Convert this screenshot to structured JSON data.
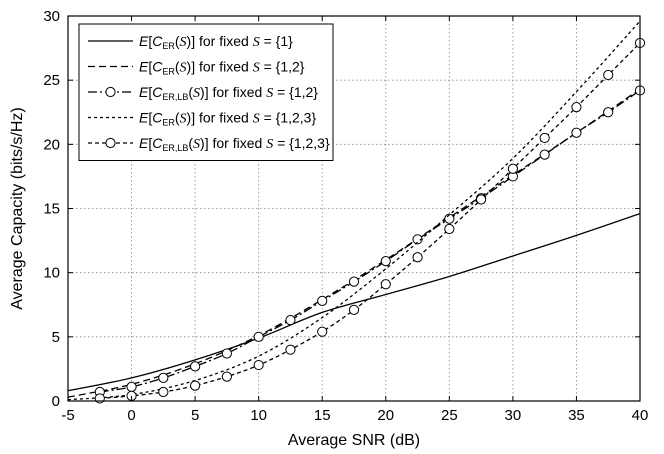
{
  "chart_data": {
    "type": "line",
    "xlabel": "Average SNR (dB)",
    "ylabel": "Average Capacity (bits/s/Hz)",
    "xlim": [
      -5,
      40
    ],
    "ylim": [
      0,
      30
    ],
    "xticks": [
      "-5",
      "0",
      "5",
      "10",
      "15",
      "20",
      "25",
      "30",
      "35",
      "40"
    ],
    "yticks": [
      "0",
      "5",
      "10",
      "15",
      "20",
      "25",
      "30"
    ],
    "grid": true,
    "legend_position": "top-left",
    "series": [
      {
        "legend": {
          "pre": "E[C",
          "sub": "ER",
          "mid": "(S)] for fixed ",
          "set": "S",
          "post": " = {1}"
        },
        "style": "solid",
        "markers": false,
        "x": [
          -5,
          0,
          5,
          10,
          15,
          20,
          25,
          30,
          35,
          40
        ],
        "y": [
          0.8,
          1.8,
          3.2,
          4.9,
          6.9,
          8.3,
          9.7,
          11.3,
          12.9,
          14.6
        ]
      },
      {
        "legend": {
          "pre": "E[C",
          "sub": "ER",
          "mid": "(S)] for fixed ",
          "set": "S",
          "post": " = {1,2}"
        },
        "style": "dashed",
        "markers": false,
        "x": [
          -5,
          0,
          5,
          10,
          15,
          20,
          25,
          30,
          35,
          40
        ],
        "y": [
          0.3,
          1.3,
          2.9,
          5.1,
          7.9,
          11.0,
          14.3,
          17.6,
          20.9,
          24.3
        ]
      },
      {
        "legend": {
          "pre": "E[C",
          "sub": "ER,LB",
          "mid": "(S)] for fixed ",
          "set": "S",
          "post": " = {1,2}"
        },
        "style": "dashdot",
        "markers": true,
        "x": [
          -2.5,
          0,
          2.5,
          5,
          7.5,
          10,
          12.5,
          15,
          17.5,
          20,
          22.5,
          25,
          27.5,
          30,
          32.5,
          35,
          37.5,
          40
        ],
        "y": [
          0.7,
          1.1,
          1.8,
          2.7,
          3.7,
          5.0,
          6.3,
          7.8,
          9.3,
          10.9,
          12.6,
          14.2,
          15.8,
          17.5,
          19.2,
          20.9,
          22.5,
          24.2
        ]
      },
      {
        "legend": {
          "pre": "E[C",
          "sub": "ER",
          "mid": "(S)] for fixed ",
          "set": "S",
          "post": " = {1,2,3}"
        },
        "style": "dotted",
        "markers": false,
        "x": [
          -5,
          0,
          5,
          10,
          15,
          20,
          25,
          30,
          35,
          40
        ],
        "y": [
          0.1,
          0.5,
          1.6,
          3.5,
          6.5,
          10.3,
          14.5,
          18.9,
          24.1,
          29.6
        ]
      },
      {
        "legend": {
          "pre": "E[C",
          "sub": "ER,LB",
          "mid": "(S)] for fixed ",
          "set": "S",
          "post": " = {1,2,3}"
        },
        "style": "shortdash",
        "markers": true,
        "x": [
          -2.5,
          0,
          2.5,
          5,
          7.5,
          10,
          12.5,
          15,
          17.5,
          20,
          22.5,
          25,
          27.5,
          30,
          32.5,
          35,
          37.5,
          40
        ],
        "y": [
          0.2,
          0.4,
          0.7,
          1.2,
          1.9,
          2.8,
          4.0,
          5.4,
          7.1,
          9.1,
          11.2,
          13.4,
          15.7,
          18.1,
          20.5,
          22.9,
          25.4,
          27.9
        ]
      }
    ]
  }
}
